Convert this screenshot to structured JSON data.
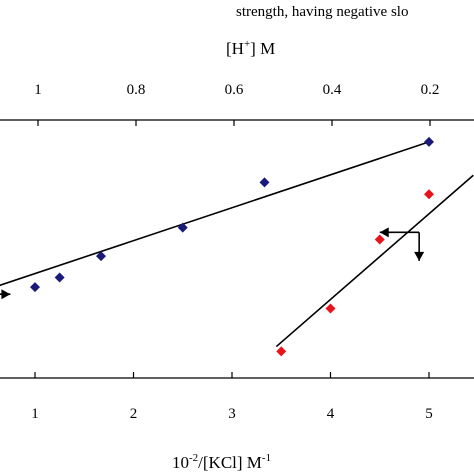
{
  "chart_data": {
    "type": "scatter",
    "header_text": "strength, having negative slo",
    "top_axis": {
      "label_main": "[H",
      "label_sup": "+",
      "label_end": "] M",
      "ticks": [
        1,
        0.8,
        0.6,
        0.4,
        0.2
      ],
      "tick_labels": [
        "1",
        "0.8",
        "0.6",
        "0.4",
        "0.2"
      ]
    },
    "bottom_axis": {
      "label_pre": "10",
      "label_sup1": "-2",
      "label_mid": "/[KCl]  M",
      "label_sup2": "-1",
      "ticks": [
        1,
        2,
        3,
        4,
        5
      ],
      "tick_labels": [
        "1",
        "2",
        "3",
        "4",
        "5"
      ],
      "xlim": [
        0.25,
        5.45
      ]
    },
    "ylim": [
      0,
      1
    ],
    "series": [
      {
        "color": "#1a1a7a",
        "marker": "diamond",
        "x": [
          1.0,
          1.25,
          1.67,
          2.5,
          3.33,
          5.0
        ],
        "y": [
          0.34,
          0.38,
          0.47,
          0.59,
          0.78,
          0.95
        ],
        "fit": {
          "x": [
            0.3,
            5.0
          ],
          "y": [
            0.3,
            0.95
          ]
        }
      },
      {
        "color": "#e8141c",
        "marker": "diamond",
        "x": [
          3.5,
          4.0,
          4.5,
          5.0
        ],
        "y": [
          0.07,
          0.25,
          0.54,
          0.73
        ],
        "fit": {
          "x": [
            3.45,
            5.45
          ],
          "y": [
            0.09,
            0.81
          ]
        }
      }
    ],
    "annotations": [
      {
        "type": "arrow",
        "direction": "right",
        "x": [
          0.3,
          0.75
        ],
        "y": [
          0.31,
          0.31
        ]
      },
      {
        "type": "arrow",
        "direction": "up",
        "x": [
          0.28,
          0.28
        ],
        "y": [
          0.4,
          0.44
        ]
      },
      {
        "type": "arrow",
        "direction": "left",
        "x": [
          4.9,
          4.5
        ],
        "y": [
          0.57,
          0.57
        ]
      },
      {
        "type": "arrow",
        "direction": "down",
        "x": [
          4.9,
          4.9
        ],
        "y": [
          0.57,
          0.45
        ]
      }
    ]
  }
}
